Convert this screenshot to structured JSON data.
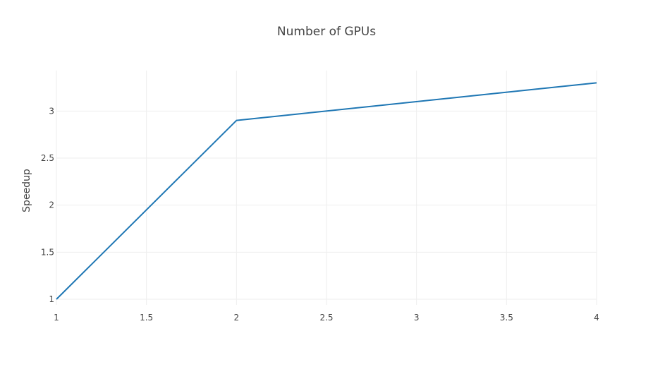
{
  "chart_data": {
    "type": "line",
    "title": "Number of GPUs",
    "xlabel": "",
    "ylabel": "Speedup",
    "x": [
      1,
      2,
      4
    ],
    "series": [
      {
        "values": [
          1,
          2.9,
          3.3
        ],
        "color": "#1f77b4"
      }
    ],
    "xlim": [
      1,
      4
    ],
    "ylim": [
      0.94,
      3.43
    ],
    "xticks": [
      1,
      1.5,
      2,
      2.5,
      3,
      3.5,
      4
    ],
    "xtick_labels": [
      "1",
      "1.5",
      "2",
      "2.5",
      "3",
      "3.5",
      "4"
    ],
    "yticks": [
      1,
      1.5,
      2,
      2.5,
      3
    ],
    "ytick_labels": [
      "1",
      "1.5",
      "2",
      "2.5",
      "3"
    ],
    "grid": true,
    "legend": "none"
  }
}
